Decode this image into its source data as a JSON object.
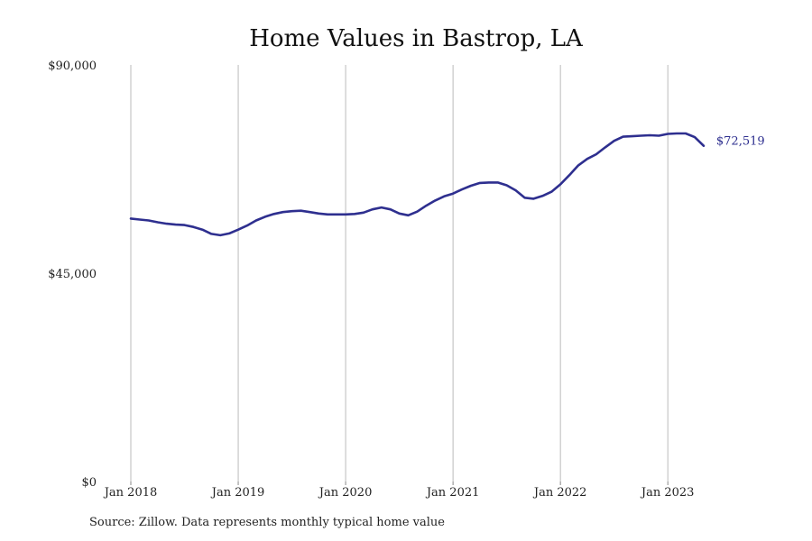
{
  "colors": {
    "line": "#2e2f8f",
    "grid": "#bbbbbb",
    "axis_baseline": "#888888",
    "text": "#222222"
  },
  "source_note": "Source: Zillow. Data represents monthly typical home value",
  "chart_data": {
    "type": "line",
    "title": "Home Values in Bastrop, LA",
    "xlabel": "",
    "ylabel": "",
    "ylim": [
      0,
      90000
    ],
    "y_ticks": [
      0,
      45000,
      90000
    ],
    "y_tick_labels": [
      "$0",
      "$45,000",
      "$90,000"
    ],
    "x_ticks": [
      "2018-01",
      "2019-01",
      "2020-01",
      "2021-01",
      "2022-01",
      "2023-01"
    ],
    "x_tick_labels": [
      "Jan 2018",
      "Jan 2019",
      "Jan 2020",
      "Jan 2021",
      "Jan 2022",
      "Jan 2023"
    ],
    "grid": "vertical lines at x ticks",
    "legend": "none",
    "end_label": "$72,519",
    "x": [
      "2018-01",
      "2018-02",
      "2018-03",
      "2018-04",
      "2018-05",
      "2018-06",
      "2018-07",
      "2018-08",
      "2018-09",
      "2018-10",
      "2018-11",
      "2018-12",
      "2019-01",
      "2019-02",
      "2019-03",
      "2019-04",
      "2019-05",
      "2019-06",
      "2019-07",
      "2019-08",
      "2019-09",
      "2019-10",
      "2019-11",
      "2019-12",
      "2020-01",
      "2020-02",
      "2020-03",
      "2020-04",
      "2020-05",
      "2020-06",
      "2020-07",
      "2020-08",
      "2020-09",
      "2020-10",
      "2020-11",
      "2020-12",
      "2021-01",
      "2021-02",
      "2021-03",
      "2021-04",
      "2021-05",
      "2021-06",
      "2021-07",
      "2021-08",
      "2021-09",
      "2021-10",
      "2021-11",
      "2021-12",
      "2022-01",
      "2022-02",
      "2022-03",
      "2022-04",
      "2022-05",
      "2022-06",
      "2022-07",
      "2022-08",
      "2022-09",
      "2022-10",
      "2022-11",
      "2022-12",
      "2023-01",
      "2023-02",
      "2023-03",
      "2023-04",
      "2023-05"
    ],
    "series": [
      {
        "values": [
          56800,
          56600,
          56400,
          56000,
          55700,
          55500,
          55400,
          55000,
          54400,
          53500,
          53200,
          53600,
          54400,
          55300,
          56400,
          57200,
          57800,
          58200,
          58400,
          58500,
          58200,
          57900,
          57700,
          57700,
          57700,
          57800,
          58100,
          58800,
          59200,
          58800,
          57900,
          57500,
          58300,
          59600,
          60700,
          61600,
          62200,
          63100,
          63900,
          64500,
          64600,
          64600,
          64000,
          62900,
          61300,
          61100,
          61700,
          62600,
          64200,
          66200,
          68300,
          69700,
          70700,
          72200,
          73600,
          74500,
          74600,
          74700,
          74800,
          74700,
          75100,
          75200,
          75200,
          74400,
          72519
        ]
      }
    ]
  }
}
